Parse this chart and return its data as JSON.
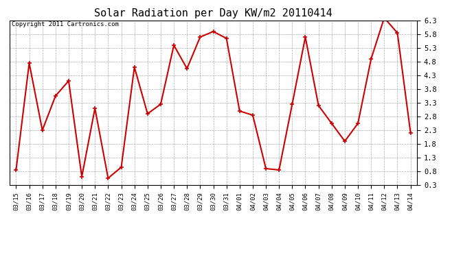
{
  "title": "Solar Radiation per Day KW/m2 20110414",
  "copyright": "Copyright 2011 Cartronics.com",
  "labels": [
    "03/15",
    "03/16",
    "03/17",
    "03/18",
    "03/19",
    "03/20",
    "03/21",
    "03/22",
    "03/23",
    "03/24",
    "03/25",
    "03/26",
    "03/27",
    "03/28",
    "03/29",
    "03/30",
    "03/31",
    "04/01",
    "04/02",
    "04/03",
    "04/04",
    "04/05",
    "04/06",
    "04/07",
    "04/08",
    "04/09",
    "04/10",
    "04/11",
    "04/12",
    "04/13",
    "04/14"
  ],
  "values": [
    0.85,
    4.75,
    2.3,
    3.55,
    4.1,
    0.6,
    3.1,
    0.55,
    0.95,
    4.6,
    2.9,
    3.25,
    5.4,
    4.55,
    5.7,
    5.9,
    5.65,
    3.0,
    2.85,
    0.9,
    0.85,
    3.25,
    5.7,
    3.2,
    2.55,
    1.9,
    2.55,
    4.9,
    6.4,
    5.85,
    2.2
  ],
  "line_color": "#cc0000",
  "marker": "+",
  "marker_size": 5,
  "line_width": 1.5,
  "ylim": [
    0.3,
    6.3
  ],
  "yticks": [
    0.3,
    0.8,
    1.3,
    1.8,
    2.3,
    2.8,
    3.3,
    3.8,
    4.3,
    4.8,
    5.3,
    5.8,
    6.3
  ],
  "bg_color": "#ffffff",
  "grid_color": "#aaaaaa",
  "title_fontsize": 11,
  "copyright_fontsize": 6.5,
  "tick_fontsize": 6.5,
  "ytick_fontsize": 7.5,
  "fig_width": 6.9,
  "fig_height": 3.75,
  "dpi": 100
}
